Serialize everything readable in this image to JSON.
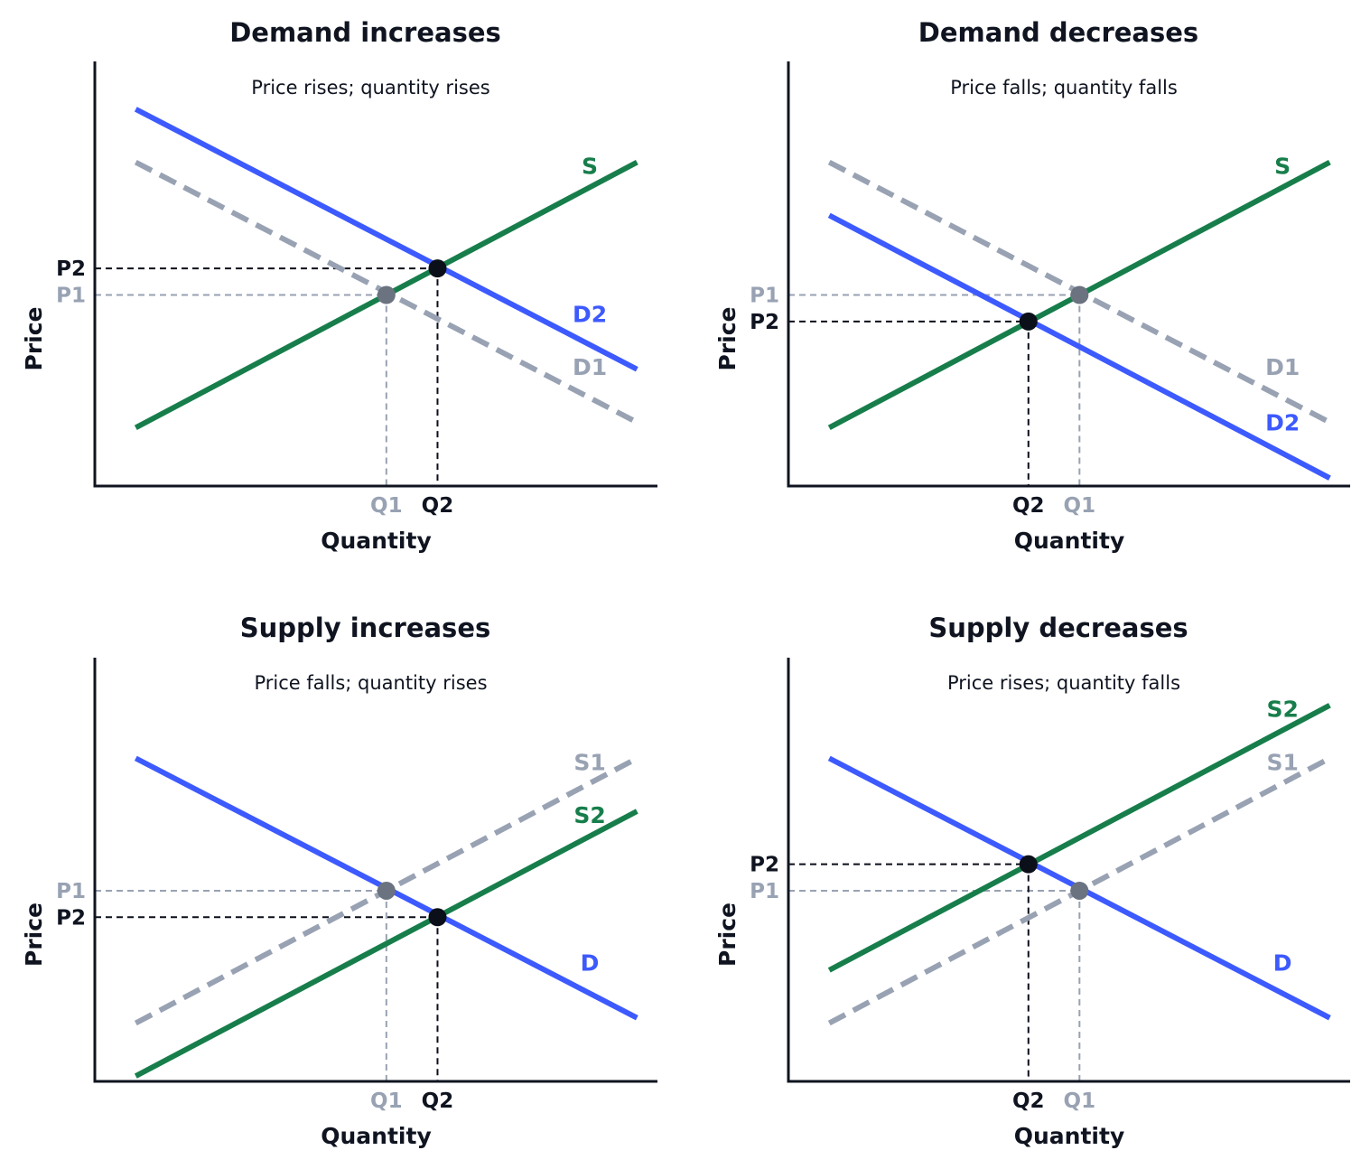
{
  "colors": {
    "axis": "#0f1420",
    "demand": "#3d5afe",
    "supply": "#177e4b",
    "old_curve": "#98a2b3",
    "old_point": "#6b7280",
    "new_point": "#0b0f1a",
    "text": "#0f1420"
  },
  "chart_data": [
    {
      "type": "line",
      "title": "Demand increases",
      "subtitle": "Price rises; quantity rises",
      "xlabel": "Quantity",
      "ylabel": "Price",
      "xlim": [
        0,
        11
      ],
      "ylim": [
        0,
        8
      ],
      "series": [
        {
          "name": "S",
          "style": "solid",
          "color_key": "supply",
          "x": [
            0.8,
            10.6
          ],
          "y": [
            1.1,
            6.1
          ]
        },
        {
          "name": "D1",
          "style": "dashed",
          "color_key": "old_curve",
          "x": [
            0.8,
            10.6
          ],
          "y": [
            6.1,
            1.2
          ]
        },
        {
          "name": "D2",
          "style": "solid",
          "color_key": "demand",
          "x": [
            0.8,
            10.6
          ],
          "y": [
            7.1,
            2.2
          ]
        }
      ],
      "equilibria": [
        {
          "label_q": "Q1",
          "label_p": "P1",
          "q": 5.7,
          "p": 3.6,
          "state": "old"
        },
        {
          "label_q": "Q2",
          "label_p": "P2",
          "q": 6.7,
          "p": 4.1,
          "state": "new"
        }
      ]
    },
    {
      "type": "line",
      "title": "Demand decreases",
      "subtitle": "Price falls; quantity falls",
      "xlabel": "Quantity",
      "ylabel": "Price",
      "xlim": [
        0,
        11
      ],
      "ylim": [
        0,
        8
      ],
      "series": [
        {
          "name": "S",
          "style": "solid",
          "color_key": "supply",
          "x": [
            0.8,
            10.6
          ],
          "y": [
            1.1,
            6.1
          ]
        },
        {
          "name": "D1",
          "style": "dashed",
          "color_key": "old_curve",
          "x": [
            0.8,
            10.6
          ],
          "y": [
            6.1,
            1.2
          ]
        },
        {
          "name": "D2",
          "style": "solid",
          "color_key": "demand",
          "x": [
            0.8,
            10.6
          ],
          "y": [
            5.1,
            0.15
          ]
        }
      ],
      "equilibria": [
        {
          "label_q": "Q1",
          "label_p": "P1",
          "q": 5.7,
          "p": 3.6,
          "state": "old"
        },
        {
          "label_q": "Q2",
          "label_p": "P2",
          "q": 4.7,
          "p": 3.1,
          "state": "new"
        }
      ]
    },
    {
      "type": "line",
      "title": "Supply increases",
      "subtitle": "Price falls; quantity rises",
      "xlabel": "Quantity",
      "ylabel": "Price",
      "xlim": [
        0,
        11
      ],
      "ylim": [
        0,
        8
      ],
      "series": [
        {
          "name": "S1",
          "style": "dashed",
          "color_key": "old_curve",
          "x": [
            0.8,
            10.6
          ],
          "y": [
            1.1,
            6.1
          ]
        },
        {
          "name": "S2",
          "style": "solid",
          "color_key": "supply",
          "x": [
            0.8,
            10.6
          ],
          "y": [
            0.1,
            5.1
          ]
        },
        {
          "name": "D",
          "style": "solid",
          "color_key": "demand",
          "x": [
            0.8,
            10.6
          ],
          "y": [
            6.1,
            1.2
          ]
        }
      ],
      "equilibria": [
        {
          "label_q": "Q1",
          "label_p": "P1",
          "q": 5.7,
          "p": 3.6,
          "state": "old"
        },
        {
          "label_q": "Q2",
          "label_p": "P2",
          "q": 6.7,
          "p": 3.1,
          "state": "new"
        }
      ]
    },
    {
      "type": "line",
      "title": "Supply decreases",
      "subtitle": "Price rises; quantity falls",
      "xlabel": "Quantity",
      "ylabel": "Price",
      "xlim": [
        0,
        11
      ],
      "ylim": [
        0,
        8
      ],
      "series": [
        {
          "name": "S1",
          "style": "dashed",
          "color_key": "old_curve",
          "x": [
            0.8,
            10.6
          ],
          "y": [
            1.1,
            6.1
          ]
        },
        {
          "name": "S2",
          "style": "solid",
          "color_key": "supply",
          "x": [
            0.8,
            10.6
          ],
          "y": [
            2.1,
            7.1
          ]
        },
        {
          "name": "D",
          "style": "solid",
          "color_key": "demand",
          "x": [
            0.8,
            10.6
          ],
          "y": [
            6.1,
            1.2
          ]
        }
      ],
      "equilibria": [
        {
          "label_q": "Q1",
          "label_p": "P1",
          "q": 5.7,
          "p": 3.6,
          "state": "old"
        },
        {
          "label_q": "Q2",
          "label_p": "P2",
          "q": 4.7,
          "p": 4.1,
          "state": "new"
        }
      ]
    }
  ]
}
